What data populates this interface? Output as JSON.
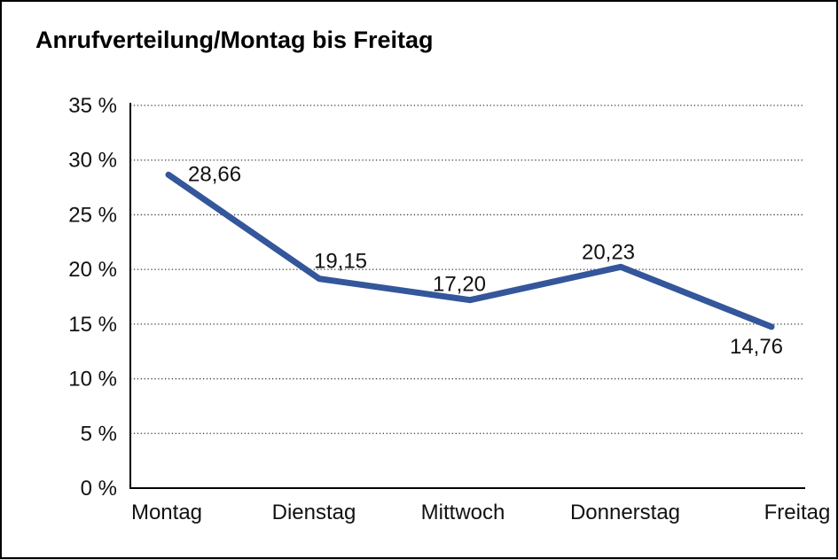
{
  "title": "Anrufverteilung/Montag bis Freitag",
  "colors": {
    "line": "#34569B",
    "axis": "#000000",
    "grid": "#3c3c3c",
    "text": "#111111",
    "background": "#ffffff",
    "frame_border": "#000000"
  },
  "chart_data": {
    "type": "line",
    "title": "Anrufverteilung/Montag bis Freitag",
    "categories": [
      "Montag",
      "Dienstag",
      "Mittwoch",
      "Donnerstag",
      "Freitag"
    ],
    "values": [
      28.66,
      19.15,
      17.2,
      20.23,
      14.76
    ],
    "value_labels": [
      "28,66",
      "19,15",
      "17,20",
      "20,23",
      "14,76"
    ],
    "series_name": "Anrufverteilung",
    "xlabel": "",
    "ylabel": "",
    "ylim": [
      0,
      35
    ],
    "ytick_step": 5,
    "ytick_labels": [
      "0 %",
      "5 %",
      "10 %",
      "15 %",
      "20 %",
      "25 %",
      "30 %",
      "35 %"
    ],
    "grid": "horizontal-dotted",
    "legend_position": "none"
  }
}
